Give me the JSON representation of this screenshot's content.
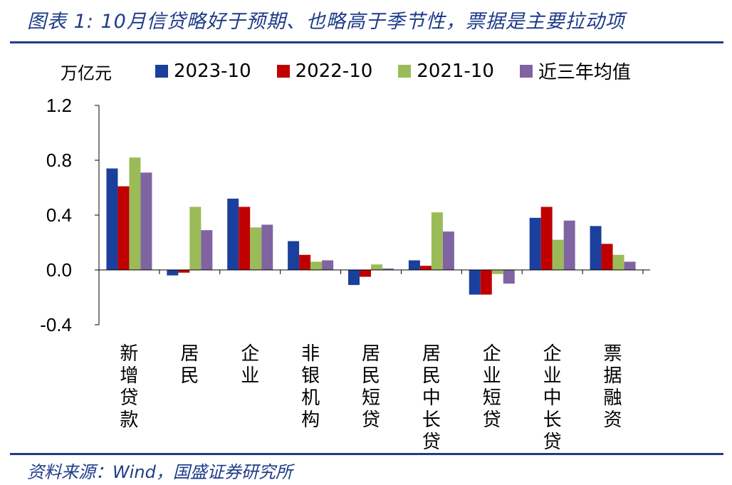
{
  "header": {
    "title": "图表 1: 10月信贷略好于预期、也略高于季节性，票据是主要拉动项"
  },
  "footer": {
    "source": "资料来源：Wind，国盛证券研究所"
  },
  "chart_data": {
    "type": "bar",
    "unit_label": "万亿元",
    "categories": [
      "新增贷款",
      "居民",
      "企业",
      "非银机构",
      "居民短贷",
      "居民中长贷",
      "企业短贷",
      "企业中长贷",
      "票据融资"
    ],
    "series": [
      {
        "name": "2023-10",
        "color": "#1b3f9c",
        "values": [
          0.74,
          -0.04,
          0.52,
          0.21,
          -0.11,
          0.07,
          -0.18,
          0.38,
          0.32
        ]
      },
      {
        "name": "2022-10",
        "color": "#c00000",
        "values": [
          0.61,
          -0.02,
          0.46,
          0.11,
          -0.05,
          0.03,
          -0.18,
          0.46,
          0.19
        ]
      },
      {
        "name": "2021-10",
        "color": "#9bbb59",
        "values": [
          0.82,
          0.46,
          0.31,
          0.06,
          0.04,
          0.42,
          -0.03,
          0.22,
          0.11
        ]
      },
      {
        "name": "近三年均值",
        "color": "#8064a2",
        "values": [
          0.71,
          0.29,
          0.33,
          0.07,
          0.01,
          0.28,
          -0.1,
          0.36,
          0.06
        ]
      }
    ],
    "ylim": [
      -0.4,
      1.2
    ],
    "yticks": [
      "-0.4",
      "0.0",
      "0.4",
      "0.8",
      "1.2"
    ],
    "ytick_values": [
      -0.4,
      0.0,
      0.4,
      0.8,
      1.2
    ],
    "legend_position": "top",
    "grid": false
  }
}
